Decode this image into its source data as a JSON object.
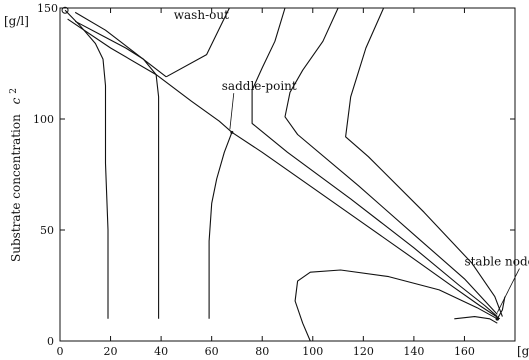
{
  "chart_data": {
    "type": "line",
    "title": "",
    "xlabel": "",
    "x_unit_label": "[g/l",
    "ylabel": "Substrate concentration",
    "ylabel_symbol": "c",
    "ylabel_subscript": "2",
    "y_unit_label": "[g/l]",
    "xlim": [
      0,
      180
    ],
    "ylim": [
      0,
      150
    ],
    "x_ticks": [
      0,
      20,
      40,
      60,
      80,
      100,
      120,
      140,
      160
    ],
    "y_ticks": [
      0,
      50,
      100
    ],
    "y_top_tick_label": "150",
    "grid": false,
    "annotations": [
      {
        "text": "wash-out",
        "x": 45,
        "y": 145
      },
      {
        "text": "saddle-point",
        "x": 64,
        "y": 113
      },
      {
        "text": "stable node",
        "x": 160,
        "y": 34
      }
    ],
    "series": [
      {
        "values": [
          [
            42,
            119
          ],
          [
            18,
            140
          ],
          [
            6,
            148
          ]
        ]
      },
      {
        "values": [
          [
            42,
            119
          ],
          [
            58,
            129
          ],
          [
            64,
            143
          ],
          [
            67,
            150
          ]
        ]
      },
      {
        "values": [
          [
            2,
            149
          ],
          [
            8,
            142
          ],
          [
            14,
            134
          ],
          [
            17,
            127
          ],
          [
            18,
            115
          ],
          [
            18,
            100
          ],
          [
            18,
            80
          ],
          [
            19,
            50
          ],
          [
            19,
            25
          ],
          [
            19,
            10
          ]
        ]
      },
      {
        "values": [
          [
            6,
            144
          ],
          [
            16,
            138
          ],
          [
            26,
            132
          ],
          [
            33,
            127
          ],
          [
            38,
            120
          ],
          [
            39,
            110
          ],
          [
            39,
            95
          ],
          [
            39,
            70
          ],
          [
            39,
            45
          ],
          [
            39,
            25
          ],
          [
            39,
            10
          ]
        ]
      },
      {
        "values": [
          [
            3,
            145
          ],
          [
            20,
            132
          ],
          [
            38,
            120
          ],
          [
            52,
            108
          ],
          [
            63,
            99
          ],
          [
            68,
            94
          ],
          [
            80,
            85
          ],
          [
            100,
            69
          ],
          [
            120,
            53
          ],
          [
            140,
            37
          ],
          [
            156,
            24
          ],
          [
            166,
            16
          ],
          [
            174,
            10
          ]
        ]
      },
      {
        "values": [
          [
            68,
            94
          ],
          [
            65,
            85
          ],
          [
            62,
            73
          ],
          [
            60,
            62
          ],
          [
            59,
            45
          ],
          [
            59,
            25
          ],
          [
            59,
            10
          ]
        ]
      },
      {
        "values": [
          [
            89,
            150
          ],
          [
            85,
            135
          ],
          [
            80,
            123
          ],
          [
            76,
            113
          ],
          [
            76,
            98
          ],
          [
            90,
            85
          ],
          [
            115,
            64
          ],
          [
            140,
            42
          ],
          [
            158,
            25
          ],
          [
            168,
            16
          ],
          [
            173,
            11
          ]
        ]
      },
      {
        "values": [
          [
            110,
            150
          ],
          [
            104,
            135
          ],
          [
            96,
            122
          ],
          [
            91,
            112
          ],
          [
            89,
            101
          ],
          [
            94,
            93
          ],
          [
            118,
            70
          ],
          [
            142,
            46
          ],
          [
            160,
            28
          ],
          [
            173,
            12
          ]
        ]
      },
      {
        "values": [
          [
            128,
            150
          ],
          [
            121,
            132
          ],
          [
            115,
            110
          ],
          [
            113,
            92
          ],
          [
            122,
            83
          ],
          [
            144,
            58
          ],
          [
            163,
            35
          ],
          [
            172,
            20
          ],
          [
            175,
            11
          ]
        ]
      },
      {
        "values": [
          [
            99,
            0
          ],
          [
            96,
            8
          ],
          [
            93,
            18
          ],
          [
            94,
            27
          ],
          [
            99,
            31
          ],
          [
            111,
            32
          ],
          [
            130,
            29
          ],
          [
            150,
            23
          ],
          [
            165,
            15
          ],
          [
            173,
            10
          ]
        ]
      },
      {
        "values": [
          [
            156,
            10
          ],
          [
            164,
            11
          ],
          [
            170,
            10
          ],
          [
            173,
            8
          ]
        ]
      },
      {
        "values": [
          [
            173,
            10
          ],
          [
            175,
            14
          ],
          [
            176,
            20
          ]
        ]
      }
    ]
  }
}
